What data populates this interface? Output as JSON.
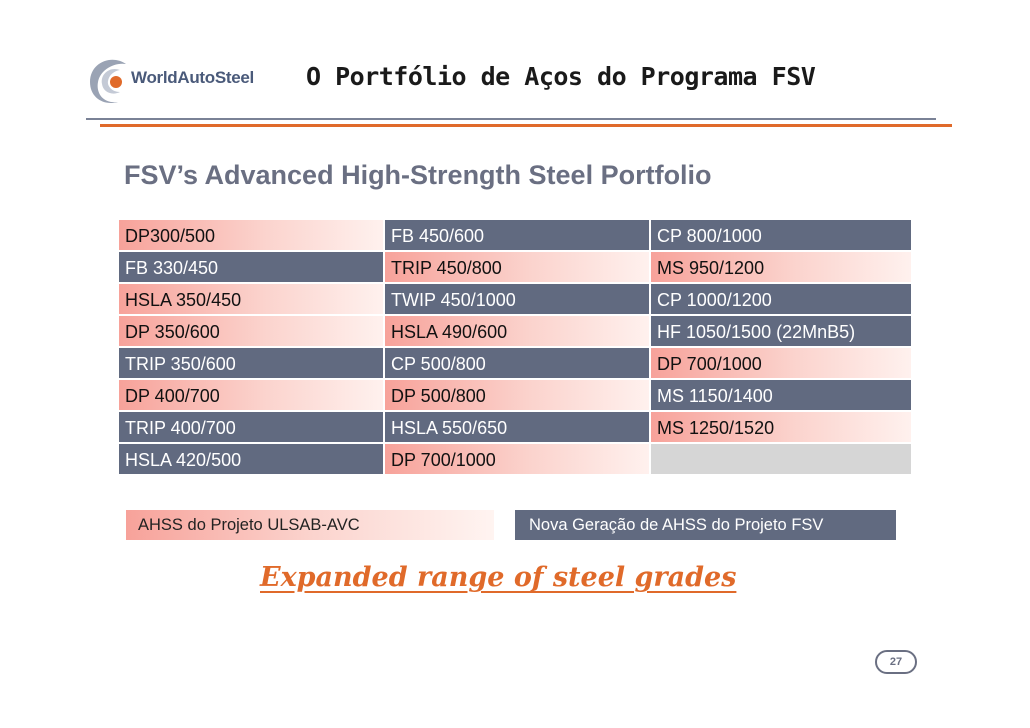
{
  "header": {
    "logo_text": "WorldAutoSteel",
    "title": "O Portfólio de Aços do Programa FSV"
  },
  "subtitle": "FSV’s Advanced High-Strength Steel Portfolio",
  "colors": {
    "slate": "#616a80",
    "pink": "#f7a29a",
    "empty": "#d6d6d6",
    "accent_orange": "#e06a2a",
    "gray_text": "#6a6f82"
  },
  "table": {
    "rows": [
      [
        {
          "text": "DP300/500",
          "style": "pink"
        },
        {
          "text": "FB 450/600",
          "style": "slate"
        },
        {
          "text": "CP 800/1000",
          "style": "slate"
        }
      ],
      [
        {
          "text": "FB 330/450",
          "style": "slate"
        },
        {
          "text": "TRIP 450/800",
          "style": "pink"
        },
        {
          "text": "MS 950/1200",
          "style": "pink"
        }
      ],
      [
        {
          "text": "HSLA 350/450",
          "style": "pink"
        },
        {
          "text": "TWIP 450/1000",
          "style": "slate"
        },
        {
          "text": "CP 1000/1200",
          "style": "slate"
        }
      ],
      [
        {
          "text": "DP 350/600",
          "style": "pink"
        },
        {
          "text": "HSLA 490/600",
          "style": "pink"
        },
        {
          "text": "HF 1050/1500 (22MnB5)",
          "style": "slate"
        }
      ],
      [
        {
          "text": "TRIP 350/600",
          "style": "slate"
        },
        {
          "text": "CP 500/800",
          "style": "slate"
        },
        {
          "text": "DP 700/1000",
          "style": "pink"
        }
      ],
      [
        {
          "text": "DP 400/700",
          "style": "pink"
        },
        {
          "text": "DP 500/800",
          "style": "pink"
        },
        {
          "text": "MS 1150/1400",
          "style": "slate"
        }
      ],
      [
        {
          "text": "TRIP 400/700",
          "style": "slate"
        },
        {
          "text": "HSLA 550/650",
          "style": "slate"
        },
        {
          "text": "MS 1250/1520",
          "style": "pink"
        }
      ],
      [
        {
          "text": "HSLA 420/500",
          "style": "slate"
        },
        {
          "text": "DP 700/1000",
          "style": "pink"
        },
        {
          "text": "",
          "style": "empty"
        }
      ]
    ]
  },
  "legend": {
    "ulsab": "AHSS do Projeto ULSAB-AVC",
    "fsv": "Nova Geração de  AHSS do Projeto FSV"
  },
  "tagline": "Expanded range of steel grades",
  "page_number": "27"
}
